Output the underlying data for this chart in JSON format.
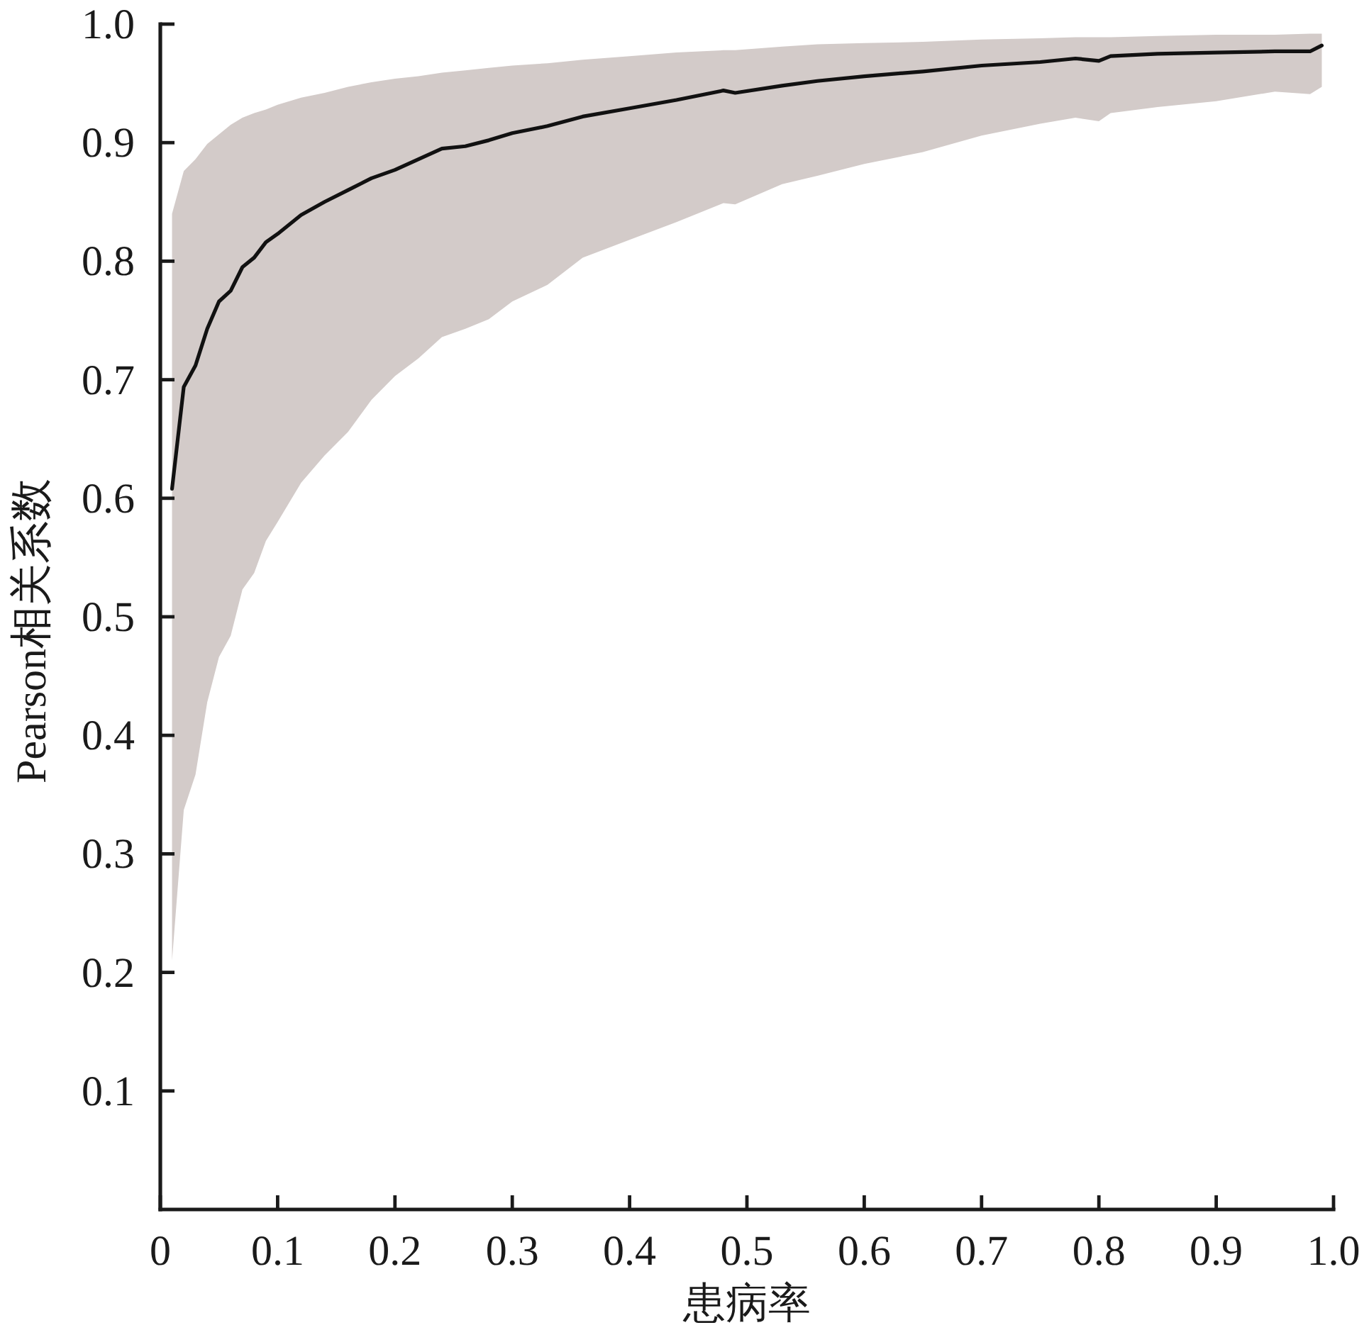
{
  "chart_data": {
    "type": "line",
    "xlabel": "患病率",
    "ylabel": "Pearson相关系数",
    "x": [
      0.01,
      0.02,
      0.03,
      0.04,
      0.05,
      0.06,
      0.07,
      0.08,
      0.09,
      0.1,
      0.12,
      0.14,
      0.16,
      0.18,
      0.2,
      0.22,
      0.24,
      0.26,
      0.28,
      0.3,
      0.33,
      0.36,
      0.4,
      0.44,
      0.48,
      0.49,
      0.53,
      0.56,
      0.6,
      0.65,
      0.7,
      0.75,
      0.78,
      0.8,
      0.81,
      0.85,
      0.9,
      0.95,
      0.98,
      0.99
    ],
    "series": [
      {
        "color": "#111111",
        "values": [
          0.608,
          0.694,
          0.712,
          0.743,
          0.766,
          0.775,
          0.795,
          0.803,
          0.816,
          0.823,
          0.839,
          0.85,
          0.86,
          0.87,
          0.877,
          0.886,
          0.895,
          0.897,
          0.902,
          0.908,
          0.914,
          0.922,
          0.929,
          0.936,
          0.944,
          0.942,
          0.948,
          0.952,
          0.956,
          0.96,
          0.965,
          0.968,
          0.971,
          0.969,
          0.973,
          0.975,
          0.976,
          0.977,
          0.977,
          0.982
        ],
        "lower": [
          0.21,
          0.337,
          0.367,
          0.428,
          0.466,
          0.484,
          0.523,
          0.537,
          0.564,
          0.58,
          0.613,
          0.636,
          0.656,
          0.683,
          0.703,
          0.718,
          0.736,
          0.743,
          0.751,
          0.766,
          0.78,
          0.803,
          0.818,
          0.833,
          0.849,
          0.848,
          0.865,
          0.872,
          0.882,
          0.892,
          0.906,
          0.916,
          0.921,
          0.918,
          0.925,
          0.93,
          0.935,
          0.943,
          0.941,
          0.947
        ],
        "upper": [
          0.84,
          0.876,
          0.886,
          0.899,
          0.907,
          0.915,
          0.921,
          0.925,
          0.928,
          0.932,
          0.938,
          0.942,
          0.947,
          0.951,
          0.954,
          0.956,
          0.959,
          0.961,
          0.963,
          0.965,
          0.967,
          0.97,
          0.973,
          0.976,
          0.978,
          0.978,
          0.981,
          0.983,
          0.984,
          0.985,
          0.987,
          0.988,
          0.989,
          0.989,
          0.989,
          0.99,
          0.991,
          0.991,
          0.992,
          0.992
        ]
      }
    ],
    "xlim": [
      0,
      1
    ],
    "ylim": [
      0,
      1
    ],
    "xticks": [
      0,
      0.1,
      0.2,
      0.3,
      0.4,
      0.5,
      0.6,
      0.7,
      0.8,
      0.9,
      {
        "value": 1,
        "label": "1.0"
      }
    ],
    "yticks": [
      0.1,
      0.2,
      0.3,
      0.4,
      0.5,
      0.6,
      0.7,
      0.8,
      0.9,
      {
        "value": 1,
        "label": "1.0"
      }
    ],
    "line_style": "solid",
    "marker": "none"
  }
}
